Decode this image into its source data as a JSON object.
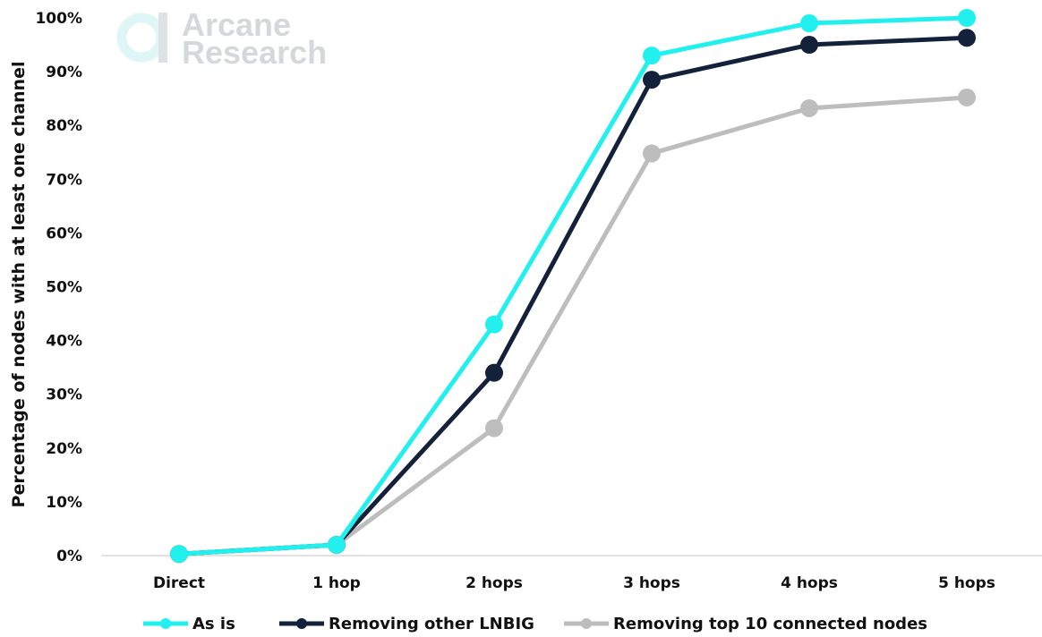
{
  "logo": {
    "line1": "Arcane",
    "line2": "Research",
    "icon": "arcane-logo-icon"
  },
  "chart_data": {
    "type": "line",
    "title": "",
    "xlabel": "",
    "ylabel": "Percentage of nodes with at least one channel",
    "categories": [
      "Direct",
      "1 hop",
      "2 hops",
      "3 hops",
      "4 hops",
      "5 hops"
    ],
    "ylim": [
      0,
      100
    ],
    "yticks": [
      "0%",
      "10%",
      "20%",
      "30%",
      "40%",
      "50%",
      "60%",
      "70%",
      "80%",
      "90%",
      "100%"
    ],
    "grid": false,
    "legend_position": "bottom",
    "series": [
      {
        "name": "As is",
        "color": "#22f0ee",
        "values": [
          0.3,
          2,
          43,
          93,
          99,
          100
        ]
      },
      {
        "name": "Removing other LNBIG",
        "color": "#14213a",
        "values": [
          0.3,
          2,
          34,
          88.5,
          95,
          96.3
        ]
      },
      {
        "name": "Removing top 10 connected nodes",
        "color": "#bdbdbd",
        "values": [
          0.3,
          2,
          23.7,
          74.8,
          83.2,
          85.2
        ]
      }
    ]
  }
}
